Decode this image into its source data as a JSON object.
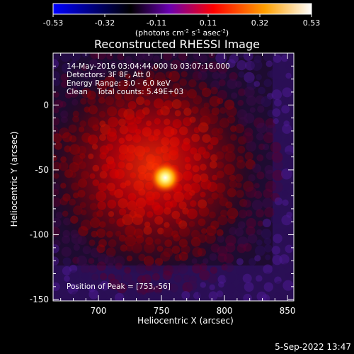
{
  "chart_data": {
    "type": "heatmap",
    "title": "Reconstructed RHESSI Image",
    "xlabel": "Heliocentric X (arcsec)",
    "ylabel": "Heliocentric Y (arcsec)",
    "xlim": [
      664,
      855
    ],
    "ylim": [
      -151,
      40
    ],
    "xticks": [
      700,
      750,
      800,
      850
    ],
    "yticks": [
      0,
      -50,
      -100,
      -150
    ],
    "colorbar": {
      "min": -0.53,
      "max": 0.53,
      "ticks": [
        "-0.53",
        "-0.32",
        "-0.11",
        "0.11",
        "0.32",
        "0.53"
      ],
      "unit_base": "(photons cm",
      "unit_sup1": "-2",
      "unit_mid1": " s",
      "unit_sup2": "-1",
      "unit_mid2": " asec",
      "unit_sup3": "-2",
      "unit_end": ")",
      "colormap": [
        "#0000ff",
        "#000000",
        "#6a00b0",
        "#ff0000",
        "#ffa000",
        "#ffffff"
      ]
    },
    "source": {
      "x": 753,
      "y": -56,
      "peak": 0.53
    },
    "annotations": {
      "time": "14-May-2016 03:04:44.000 to 03:07:16.000",
      "detectors": "Detectors: 3F 8F, Att 0",
      "energy": "Energy Range: 3.0 - 6.0 keV",
      "clean": "Clean    Total counts: 5.49E+03",
      "peak_position": "Position of Peak = [753,-56]"
    },
    "footer_date": "5-Sep-2022 13:47"
  }
}
